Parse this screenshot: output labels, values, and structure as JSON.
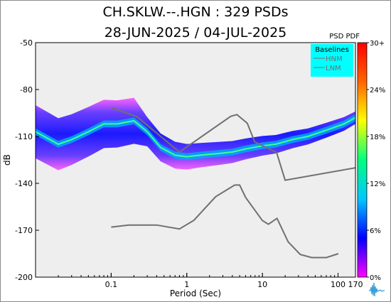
{
  "title_line1": "CH.SKLW.--.HGN : 329 PSDs",
  "title_line2": "28-JUN-2025 / 04-JUL-2025",
  "chart_data": {
    "type": "heatmap",
    "xlabel": "Period (Sec)",
    "ylabel": "dB",
    "x_scale": "log",
    "xlim": [
      0.01,
      170
    ],
    "ylim": [
      -200,
      -50
    ],
    "x_ticks": [
      0.1,
      1,
      10,
      100,
      170
    ],
    "x_tick_labels": [
      "0.1",
      "1",
      "10",
      "100",
      "170"
    ],
    "y_ticks": [
      -50,
      -80,
      -110,
      -140,
      -170,
      -200
    ],
    "y_tick_labels": [
      "-50",
      "-80",
      "-110",
      "-140",
      "-170",
      "-200"
    ],
    "grid": false,
    "legend": {
      "title": "Baselines",
      "placement": "top-right",
      "background": "#00ffff",
      "entries": [
        "HNM",
        "LNM"
      ]
    },
    "colorbar": {
      "title": "PSD PDF",
      "tick_labels": [
        "30+",
        "24%",
        "18%",
        "12%",
        "6%",
        "0%"
      ],
      "colors": [
        "#ff00ff",
        "#0000ff",
        "#00c8ff",
        "#00ff80",
        "#ffff00",
        "#ff6600",
        "#ff0000"
      ]
    },
    "series": [
      {
        "name": "HNM",
        "color": "#707070",
        "x": [
          0.1,
          0.22,
          0.8,
          3.8,
          4.6,
          6.3,
          7.9,
          15.4,
          20,
          354.8
        ],
        "y": [
          -91.5,
          -97.4,
          -120,
          -97.2,
          -96,
          -101.5,
          -113.4,
          -120.3,
          -138,
          -127.3
        ]
      },
      {
        "name": "LNM",
        "color": "#707070",
        "x": [
          0.1,
          0.17,
          0.4,
          0.8,
          1.24,
          2.4,
          4.3,
          5,
          6,
          10,
          12,
          15.6,
          21.9,
          31.6,
          45,
          70,
          101
        ],
        "y": [
          -168,
          -166.7,
          -166.7,
          -169.2,
          -163.7,
          -148.6,
          -141.1,
          -141.1,
          -149,
          -163.8,
          -166.2,
          -162.4,
          -177.4,
          -185.5,
          -187.5,
          -187.5,
          -185
        ]
      }
    ],
    "pdf_mode": {
      "name": "mode",
      "x": [
        0.01,
        0.02,
        0.03,
        0.05,
        0.08,
        0.12,
        0.2,
        0.3,
        0.45,
        0.7,
        1,
        1.5,
        2.5,
        4,
        6,
        10,
        15,
        25,
        40,
        70,
        120,
        170
      ],
      "y": [
        -107,
        -115,
        -112,
        -107,
        -102,
        -102,
        -100,
        -107,
        -117,
        -122,
        -123,
        -122,
        -121,
        -120,
        -118,
        -116,
        -115,
        -112,
        -110,
        -106,
        -102,
        -98
      ]
    }
  }
}
